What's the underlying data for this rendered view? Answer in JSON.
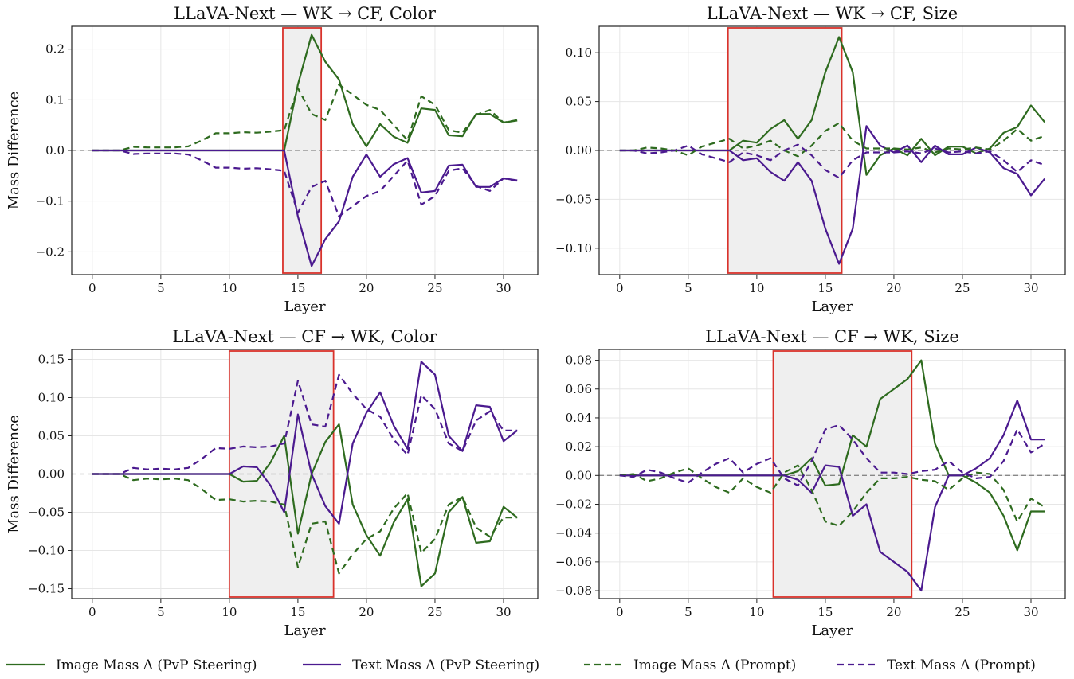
{
  "legend": [
    {
      "label": "Image Mass Δ (PvP Steering)",
      "color": "#2e6b1f",
      "dash": false
    },
    {
      "label": "Text Mass Δ (PvP Steering)",
      "color": "#4b1a8f",
      "dash": false
    },
    {
      "label": "Image Mass Δ (Prompt)",
      "color": "#2e6b1f",
      "dash": true
    },
    {
      "label": "Text Mass Δ (Prompt)",
      "color": "#4b1a8f",
      "dash": true
    }
  ],
  "colors": {
    "image": "#2e6b1f",
    "text": "#4b1a8f",
    "highlight_edge": "#d9322b",
    "highlight_fill": "#efefef",
    "zero_line": "#888888",
    "grid": "#e6e6e6"
  },
  "chart_data": [
    {
      "type": "line",
      "title": "LLaVA-Next — WK → CF, Color",
      "xlabel": "Layer",
      "ylabel": "Mass Difference",
      "xlim": [
        -1.5,
        32.5
      ],
      "ylim": [
        -0.245,
        0.245
      ],
      "xticks": [
        0,
        5,
        10,
        15,
        20,
        25,
        30
      ],
      "xtick_labels": [
        "0",
        "5",
        "10",
        "15",
        "20",
        "25",
        "30"
      ],
      "yticks": [
        -0.2,
        -0.1,
        0.0,
        0.1,
        0.2
      ],
      "ytick_labels": [
        "−0.2",
        "−0.1",
        "0.0",
        "0.1",
        "0.2"
      ],
      "highlight": [
        13.9,
        16.7
      ],
      "x": [
        0,
        1,
        2,
        3,
        4,
        5,
        6,
        7,
        8,
        9,
        10,
        11,
        12,
        13,
        14,
        15,
        16,
        17,
        18,
        19,
        20,
        21,
        22,
        23,
        24,
        25,
        26,
        27,
        28,
        29,
        30,
        31
      ],
      "series": [
        {
          "name": "Image Mass Δ (PvP Steering)",
          "role": "image",
          "dash": false,
          "values": [
            0,
            0,
            0,
            0,
            0,
            0,
            0,
            0,
            0,
            0,
            0,
            0,
            0,
            0,
            0,
            0.13,
            0.228,
            0.175,
            0.14,
            0.052,
            0.008,
            0.052,
            0.027,
            0.015,
            0.083,
            0.08,
            0.03,
            0.028,
            0.072,
            0.072,
            0.055,
            0.059
          ]
        },
        {
          "name": "Text Mass Δ (PvP Steering)",
          "role": "text",
          "dash": false,
          "values": [
            0,
            0,
            0,
            0,
            0,
            0,
            0,
            0,
            0,
            0,
            0,
            0,
            0,
            0,
            0,
            -0.13,
            -0.228,
            -0.175,
            -0.14,
            -0.052,
            -0.008,
            -0.052,
            -0.027,
            -0.015,
            -0.083,
            -0.08,
            -0.03,
            -0.028,
            -0.072,
            -0.072,
            -0.055,
            -0.059
          ]
        },
        {
          "name": "Image Mass Δ (Prompt)",
          "role": "image",
          "dash": true,
          "values": [
            0,
            0,
            0,
            0.007,
            0.006,
            0.006,
            0.006,
            0.008,
            0.02,
            0.034,
            0.034,
            0.036,
            0.035,
            0.037,
            0.04,
            0.123,
            0.072,
            0.06,
            0.13,
            0.11,
            0.09,
            0.08,
            0.05,
            0.02,
            0.107,
            0.09,
            0.04,
            0.035,
            0.07,
            0.08,
            0.055,
            0.06
          ]
        },
        {
          "name": "Text Mass Δ (Prompt)",
          "role": "text",
          "dash": true,
          "values": [
            0,
            0,
            0,
            -0.007,
            -0.006,
            -0.006,
            -0.006,
            -0.008,
            -0.02,
            -0.034,
            -0.034,
            -0.036,
            -0.035,
            -0.037,
            -0.04,
            -0.123,
            -0.072,
            -0.06,
            -0.13,
            -0.11,
            -0.09,
            -0.08,
            -0.05,
            -0.02,
            -0.107,
            -0.09,
            -0.04,
            -0.035,
            -0.07,
            -0.08,
            -0.055,
            -0.06
          ]
        }
      ]
    },
    {
      "type": "line",
      "title": "LLaVA-Next — WK → CF, Size",
      "xlabel": "Layer",
      "ylabel": "",
      "xlim": [
        -1.5,
        32.5
      ],
      "ylim": [
        -0.127,
        0.127
      ],
      "xticks": [
        0,
        5,
        10,
        15,
        20,
        25,
        30
      ],
      "xtick_labels": [
        "0",
        "5",
        "10",
        "15",
        "20",
        "25",
        "30"
      ],
      "yticks": [
        -0.1,
        -0.05,
        0.0,
        0.05,
        0.1
      ],
      "ytick_labels": [
        "−0.10",
        "−0.05",
        "0.00",
        "0.05",
        "0.10"
      ],
      "highlight": [
        7.9,
        16.2
      ],
      "x": [
        0,
        1,
        2,
        3,
        4,
        5,
        6,
        7,
        8,
        9,
        10,
        11,
        12,
        13,
        14,
        15,
        16,
        17,
        18,
        19,
        20,
        21,
        22,
        23,
        24,
        25,
        26,
        27,
        28,
        29,
        30,
        31
      ],
      "series": [
        {
          "name": "Image Mass Δ (PvP Steering)",
          "role": "image",
          "dash": false,
          "values": [
            0,
            0,
            0,
            0,
            0,
            0,
            0,
            0,
            0,
            0.01,
            0.008,
            0.022,
            0.031,
            0.012,
            0.031,
            0.08,
            0.116,
            0.08,
            -0.025,
            -0.005,
            0.002,
            -0.005,
            0.012,
            -0.005,
            0.004,
            0.004,
            -0.003,
            0.002,
            0.018,
            0.024,
            0.046,
            0.029
          ]
        },
        {
          "name": "Text Mass Δ (PvP Steering)",
          "role": "text",
          "dash": false,
          "values": [
            0,
            0,
            0,
            0,
            0,
            0,
            0,
            0,
            0,
            -0.01,
            -0.008,
            -0.022,
            -0.031,
            -0.012,
            -0.031,
            -0.08,
            -0.116,
            -0.08,
            0.025,
            0.005,
            -0.002,
            0.005,
            -0.012,
            0.005,
            -0.004,
            -0.004,
            0.003,
            -0.002,
            -0.018,
            -0.024,
            -0.046,
            -0.029
          ]
        },
        {
          "name": "Image Mass Δ (Prompt)",
          "role": "image",
          "dash": true,
          "values": [
            0,
            0,
            0.003,
            0.002,
            0,
            -0.005,
            0.004,
            0.008,
            0.012,
            0.002,
            0.005,
            0.01,
            0,
            -0.006,
            0.005,
            0.02,
            0.028,
            0.01,
            0.002,
            0.002,
            0.002,
            0.001,
            0.003,
            -0.002,
            0.002,
            0.001,
            0.003,
            0.001,
            0.01,
            0.022,
            0.01,
            0.015
          ]
        },
        {
          "name": "Text Mass Δ (Prompt)",
          "role": "text",
          "dash": true,
          "values": [
            0,
            0,
            -0.003,
            -0.002,
            0,
            0.005,
            -0.004,
            -0.008,
            -0.012,
            -0.002,
            -0.005,
            -0.01,
            0,
            0.006,
            -0.005,
            -0.02,
            -0.028,
            -0.01,
            -0.002,
            -0.002,
            -0.002,
            -0.001,
            -0.003,
            0.002,
            -0.002,
            -0.001,
            -0.003,
            -0.001,
            -0.01,
            -0.022,
            -0.01,
            -0.015
          ]
        }
      ]
    },
    {
      "type": "line",
      "title": "LLaVA-Next — CF → WK, Color",
      "xlabel": "Layer",
      "ylabel": "Mass Difference",
      "xlim": [
        -1.5,
        32.5
      ],
      "ylim": [
        -0.163,
        0.163
      ],
      "xticks": [
        0,
        5,
        10,
        15,
        20,
        25,
        30
      ],
      "xtick_labels": [
        "0",
        "5",
        "10",
        "15",
        "20",
        "25",
        "30"
      ],
      "yticks": [
        -0.15,
        -0.1,
        -0.05,
        0.0,
        0.05,
        0.1,
        0.15
      ],
      "ytick_labels": [
        "−0.15",
        "−0.10",
        "−0.05",
        "0.00",
        "0.05",
        "0.10",
        "0.15"
      ],
      "highlight": [
        10.0,
        17.6
      ],
      "x": [
        0,
        1,
        2,
        3,
        4,
        5,
        6,
        7,
        8,
        9,
        10,
        11,
        12,
        13,
        14,
        15,
        16,
        17,
        18,
        19,
        20,
        21,
        22,
        23,
        24,
        25,
        26,
        27,
        28,
        29,
        30,
        31
      ],
      "series": [
        {
          "name": "Image Mass Δ (PvP Steering)",
          "role": "image",
          "dash": false,
          "values": [
            0,
            0,
            0,
            0,
            0,
            0,
            0,
            0,
            0,
            0,
            0,
            -0.01,
            -0.009,
            0.015,
            0.05,
            -0.078,
            0,
            0.042,
            0.065,
            -0.04,
            -0.08,
            -0.107,
            -0.063,
            -0.033,
            -0.147,
            -0.13,
            -0.05,
            -0.03,
            -0.09,
            -0.088,
            -0.043,
            -0.057
          ]
        },
        {
          "name": "Text Mass Δ (PvP Steering)",
          "role": "text",
          "dash": false,
          "values": [
            0,
            0,
            0,
            0,
            0,
            0,
            0,
            0,
            0,
            0,
            0,
            0.01,
            0.009,
            -0.015,
            -0.05,
            0.078,
            0,
            -0.042,
            -0.065,
            0.04,
            0.08,
            0.107,
            0.063,
            0.033,
            0.147,
            0.13,
            0.05,
            0.03,
            0.09,
            0.088,
            0.043,
            0.057
          ]
        },
        {
          "name": "Image Mass Δ (Prompt)",
          "role": "image",
          "dash": true,
          "values": [
            0,
            0,
            0,
            -0.008,
            -0.006,
            -0.007,
            -0.006,
            -0.008,
            -0.02,
            -0.034,
            -0.033,
            -0.036,
            -0.035,
            -0.036,
            -0.04,
            -0.122,
            -0.065,
            -0.062,
            -0.13,
            -0.105,
            -0.085,
            -0.075,
            -0.045,
            -0.025,
            -0.103,
            -0.085,
            -0.04,
            -0.03,
            -0.07,
            -0.082,
            -0.057,
            -0.057
          ]
        },
        {
          "name": "Text Mass Δ (Prompt)",
          "role": "text",
          "dash": true,
          "values": [
            0,
            0,
            0,
            0.008,
            0.006,
            0.007,
            0.006,
            0.008,
            0.02,
            0.034,
            0.033,
            0.036,
            0.035,
            0.036,
            0.04,
            0.122,
            0.065,
            0.062,
            0.13,
            0.105,
            0.085,
            0.075,
            0.045,
            0.025,
            0.103,
            0.085,
            0.04,
            0.03,
            0.07,
            0.082,
            0.057,
            0.057
          ]
        }
      ]
    },
    {
      "type": "line",
      "title": "LLaVA-Next — CF → WK, Size",
      "xlabel": "Layer",
      "ylabel": "",
      "xlim": [
        -1.5,
        32.5
      ],
      "ylim": [
        -0.0855,
        0.0875
      ],
      "xticks": [
        0,
        5,
        10,
        15,
        20,
        25,
        30
      ],
      "xtick_labels": [
        "0",
        "5",
        "10",
        "15",
        "20",
        "25",
        "30"
      ],
      "yticks": [
        -0.08,
        -0.06,
        -0.04,
        -0.02,
        0.0,
        0.02,
        0.04,
        0.06,
        0.08
      ],
      "ytick_labels": [
        "−0.08",
        "−0.06",
        "−0.04",
        "−0.02",
        "0.00",
        "0.02",
        "0.04",
        "0.06",
        "0.08"
      ],
      "highlight": [
        11.2,
        21.3
      ],
      "x": [
        0,
        1,
        2,
        3,
        4,
        5,
        6,
        7,
        8,
        9,
        10,
        11,
        12,
        13,
        14,
        15,
        16,
        17,
        18,
        19,
        20,
        21,
        22,
        23,
        24,
        25,
        26,
        27,
        28,
        29,
        30,
        31
      ],
      "series": [
        {
          "name": "Image Mass Δ (PvP Steering)",
          "role": "image",
          "dash": false,
          "values": [
            0,
            0,
            0,
            0,
            0,
            0,
            0,
            0,
            0,
            0,
            0,
            0,
            0,
            0.003,
            0.012,
            -0.007,
            -0.006,
            0.028,
            0.02,
            0.053,
            0.06,
            0.067,
            0.08,
            0.022,
            0,
            0,
            -0.005,
            -0.012,
            -0.028,
            -0.052,
            -0.025,
            -0.025
          ]
        },
        {
          "name": "Text Mass Δ (PvP Steering)",
          "role": "text",
          "dash": false,
          "values": [
            0,
            0,
            0,
            0,
            0,
            0,
            0,
            0,
            0,
            0,
            0,
            0,
            0,
            -0.003,
            -0.012,
            0.007,
            0.006,
            -0.028,
            -0.02,
            -0.053,
            -0.06,
            -0.067,
            -0.08,
            -0.022,
            0,
            0,
            0.005,
            0.012,
            0.028,
            0.052,
            0.025,
            0.025
          ]
        },
        {
          "name": "Image Mass Δ (Prompt)",
          "role": "image",
          "dash": true,
          "values": [
            0,
            0.001,
            -0.004,
            -0.002,
            0.002,
            0.005,
            -0.002,
            -0.008,
            -0.012,
            -0.002,
            -0.008,
            -0.012,
            0.002,
            0.007,
            -0.01,
            -0.032,
            -0.035,
            -0.025,
            -0.012,
            -0.002,
            -0.002,
            -0.001,
            -0.003,
            -0.004,
            -0.01,
            -0.002,
            0.002,
            0.001,
            -0.01,
            -0.032,
            -0.016,
            -0.022
          ]
        },
        {
          "name": "Text Mass Δ (Prompt)",
          "role": "text",
          "dash": true,
          "values": [
            0,
            -0.001,
            0.004,
            0.002,
            -0.002,
            -0.005,
            0.002,
            0.008,
            0.012,
            0.002,
            0.008,
            0.012,
            -0.002,
            -0.007,
            0.01,
            0.032,
            0.035,
            0.025,
            0.012,
            0.002,
            0.002,
            0.001,
            0.003,
            0.004,
            0.01,
            0.002,
            -0.002,
            -0.001,
            0.01,
            0.032,
            0.016,
            0.022
          ]
        }
      ]
    }
  ]
}
